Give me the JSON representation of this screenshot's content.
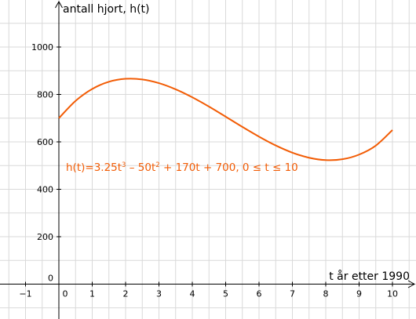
{
  "chart_data": {
    "type": "line",
    "title": "",
    "xlabel": "t år etter 1990",
    "ylabel": "antall hjort, h(t)",
    "xlim": [
      -1.75,
      11
    ],
    "ylim": [
      -145,
      1180
    ],
    "x_ticks": [
      -1,
      0,
      1,
      2,
      3,
      4,
      5,
      6,
      7,
      8,
      9,
      10
    ],
    "x_tick_labels": [
      "−1",
      "0",
      "1",
      "2",
      "3",
      "4",
      "5",
      "6",
      "7",
      "8",
      "9",
      "10"
    ],
    "y_ticks": [
      0,
      200,
      400,
      600,
      800,
      1000
    ],
    "y_tick_labels": [
      "0",
      "200",
      "400",
      "600",
      "800",
      "1000"
    ],
    "grid": true,
    "series": [
      {
        "name": "",
        "color": "#f25c05",
        "x": [
          0,
          0.5,
          1,
          1.5,
          2,
          2.5,
          3,
          3.5,
          4,
          4.5,
          5,
          5.5,
          6,
          6.5,
          7,
          7.5,
          8,
          8.5,
          9,
          9.5,
          10
        ],
        "y": [
          700,
          772.9,
          823.3,
          853.5,
          866,
          863.3,
          847.8,
          821.8,
          788,
          748.7,
          706.3,
          663.2,
          622,
          584.9,
          554.5,
          533.1,
          523,
          526.7,
          546.3,
          584.2,
          650
        ]
      }
    ],
    "annotation": {
      "text_main": "h(t)=3.25t",
      "sup1": "3",
      "text_mid1": " – 50t",
      "sup2": "2",
      "text_tail": " + 170t + 700, 0 ≤ t ≤ 10",
      "color": "#f25c05"
    }
  }
}
